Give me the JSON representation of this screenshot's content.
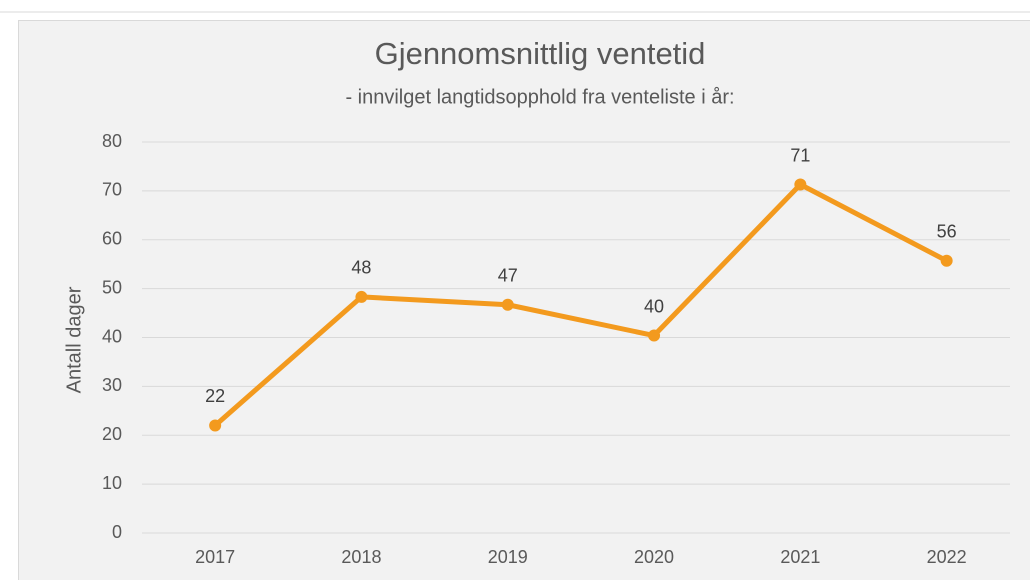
{
  "chart_data": {
    "type": "line",
    "title": "Gjennomsnittlig ventetid",
    "subtitle": "- innvilget langtidsopphold fra venteliste i år:",
    "y_label": "Antall dager",
    "categories": [
      "2017",
      "2018",
      "2019",
      "2020",
      "2021",
      "2022"
    ],
    "series": [
      {
        "name": "Gjennomsnittlig ventetid",
        "color": "#f39a1e",
        "values": [
          22,
          48.3,
          46.7,
          40.4,
          71.3,
          55.7
        ],
        "value_labels": [
          "22",
          "48",
          "47",
          "40",
          "71",
          "56"
        ]
      }
    ],
    "ylim": [
      0,
      80
    ],
    "yticks": [
      0,
      10,
      20,
      30,
      40,
      50,
      60,
      70,
      80
    ],
    "grid": true
  }
}
